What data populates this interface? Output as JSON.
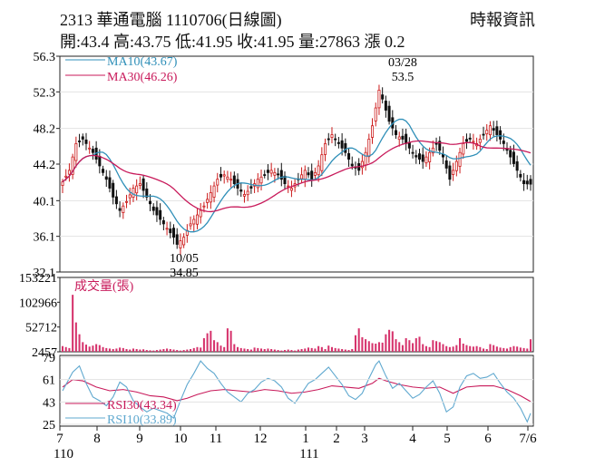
{
  "header": {
    "title": "2313  華通電腦 1110706(日線圖)",
    "source": "時報資訊",
    "ohlc": "開:43.4 高:43.75 低:41.95 收:41.95 量:27863 漲 0.2"
  },
  "chart_data": [
    {
      "type": "candlestick",
      "panel": "price",
      "y_ticks": [
        "56.3",
        "52.3",
        "48.2",
        "44.2",
        "40.1",
        "36.1",
        "32.1"
      ],
      "ylim": [
        32.1,
        56.3
      ],
      "legend": [
        "MA10(43.67)",
        "MA30(46.26)"
      ],
      "annotations": [
        {
          "label_top": "03/28",
          "label_bottom": "53.5",
          "x": "2022-03-28",
          "y": 53.5
        },
        {
          "label_top": "10/05",
          "label_bottom": "34.85",
          "x": "2021-10-05",
          "y": 34.85
        }
      ],
      "close_path": [
        [
          0,
          42.2
        ],
        [
          2,
          43.5
        ],
        [
          4,
          46.5
        ],
        [
          6,
          47.0
        ],
        [
          9,
          45.5
        ],
        [
          11,
          44.0
        ],
        [
          13,
          42.5
        ],
        [
          15,
          40.5
        ],
        [
          17,
          39.0
        ],
        [
          19,
          40.0
        ],
        [
          21,
          41.5
        ],
        [
          23,
          42.0
        ],
        [
          25,
          40.5
        ],
        [
          27,
          39.0
        ],
        [
          29,
          38.0
        ],
        [
          31,
          37.0
        ],
        [
          33,
          36.0
        ],
        [
          34,
          35.2
        ],
        [
          36,
          36.0
        ],
        [
          38,
          37.5
        ],
        [
          40,
          38.5
        ],
        [
          42,
          39.5
        ],
        [
          44,
          41.0
        ],
        [
          46,
          42.5
        ],
        [
          48,
          43.0
        ],
        [
          50,
          42.5
        ],
        [
          52,
          41.5
        ],
        [
          54,
          40.8
        ],
        [
          56,
          41.5
        ],
        [
          58,
          42.5
        ],
        [
          60,
          43.0
        ],
        [
          62,
          43.5
        ],
        [
          64,
          43.0
        ],
        [
          66,
          42.0
        ],
        [
          68,
          41.5
        ],
        [
          70,
          42.5
        ],
        [
          72,
          43.5
        ],
        [
          74,
          42.5
        ],
        [
          76,
          44.0
        ],
        [
          78,
          46.5
        ],
        [
          80,
          47.5
        ],
        [
          82,
          46.5
        ],
        [
          84,
          45.5
        ],
        [
          86,
          44.0
        ],
        [
          88,
          43.5
        ],
        [
          90,
          45.5
        ],
        [
          92,
          48.5
        ],
        [
          94,
          52.5
        ],
        [
          95,
          51.5
        ],
        [
          97,
          49.0
        ],
        [
          99,
          47.5
        ],
        [
          101,
          47.0
        ],
        [
          103,
          46.0
        ],
        [
          105,
          45.0
        ],
        [
          107,
          44.5
        ],
        [
          109,
          45.5
        ],
        [
          111,
          46.5
        ],
        [
          113,
          45.0
        ],
        [
          115,
          42.5
        ],
        [
          117,
          44.5
        ],
        [
          119,
          46.5
        ],
        [
          121,
          47.0
        ],
        [
          123,
          46.5
        ],
        [
          125,
          47.5
        ],
        [
          127,
          48.5
        ],
        [
          129,
          47.5
        ],
        [
          131,
          46.5
        ],
        [
          133,
          45.0
        ],
        [
          135,
          43.5
        ],
        [
          137,
          42.0
        ],
        [
          139,
          41.95
        ]
      ]
    },
    {
      "type": "bar",
      "panel": "volume",
      "ylabel": "成交量(張)",
      "y_ticks": [
        "153221",
        "102966",
        "52712",
        "2457"
      ],
      "ylim": [
        2457,
        153221
      ],
      "values": [
        14000,
        12000,
        10000,
        118000,
        62000,
        38000,
        22000,
        17000,
        13000,
        15000,
        18000,
        16000,
        12000,
        10000,
        9000,
        8000,
        9000,
        11000,
        10000,
        8000,
        7000,
        9000,
        8000,
        7000,
        7500,
        6000,
        5500,
        5000,
        6000,
        7000,
        8000,
        9000,
        8000,
        7000,
        6000,
        5000,
        6000,
        7000,
        8000,
        10000,
        12000,
        11000,
        30000,
        40000,
        45000,
        26000,
        22000,
        15000,
        12000,
        50000,
        45000,
        18000,
        12000,
        10000,
        9000,
        8000,
        7000,
        11000,
        10000,
        9000,
        8000,
        9000,
        8000,
        7000,
        6000,
        5000,
        6000,
        7000,
        6000,
        5000,
        7000,
        8000,
        9000,
        11000,
        10000,
        9000,
        14000,
        12000,
        8000,
        15000,
        12000,
        10000,
        9000,
        8000,
        7000,
        6000,
        8000,
        36000,
        50000,
        32000,
        28000,
        24000,
        20000,
        19000,
        22000,
        21000,
        38000,
        47000,
        44000,
        28000,
        22000,
        16000,
        30000,
        26000,
        20000,
        30000,
        33000,
        18000,
        14000,
        12000,
        26000,
        24000,
        22000,
        18000,
        14000,
        12000,
        13000,
        16000,
        30000,
        19000,
        16000,
        14000,
        13000,
        14000,
        12000,
        9000,
        8000,
        18000,
        16000,
        13000,
        11000,
        10000,
        9000,
        12000,
        14000,
        13000,
        11000,
        10000,
        9000,
        27863
      ]
    },
    {
      "type": "line",
      "panel": "rsi",
      "y_ticks": [
        "79",
        "61",
        "43",
        "25"
      ],
      "ylim": [
        25,
        79
      ],
      "legend": [
        "RSI30(43.34)",
        "RSI10(33.89)"
      ],
      "series": [
        {
          "name": "RSI30(43.34)",
          "values": [
            [
              0,
              55
            ],
            [
              3,
              61
            ],
            [
              6,
              60
            ],
            [
              10,
              55
            ],
            [
              14,
              52
            ],
            [
              18,
              53
            ],
            [
              22,
              51
            ],
            [
              26,
              48
            ],
            [
              30,
              47
            ],
            [
              34,
              44
            ],
            [
              37,
              46
            ],
            [
              40,
              49
            ],
            [
              44,
              52
            ],
            [
              48,
              53
            ],
            [
              52,
              52
            ],
            [
              56,
              51
            ],
            [
              60,
              53
            ],
            [
              64,
              52
            ],
            [
              68,
              50
            ],
            [
              72,
              51
            ],
            [
              76,
              53
            ],
            [
              80,
              56
            ],
            [
              84,
              55
            ],
            [
              88,
              54
            ],
            [
              92,
              58
            ],
            [
              94,
              62
            ],
            [
              96,
              60
            ],
            [
              100,
              57
            ],
            [
              104,
              55
            ],
            [
              108,
              54
            ],
            [
              112,
              55
            ],
            [
              116,
              50
            ],
            [
              120,
              55
            ],
            [
              124,
              56
            ],
            [
              128,
              56
            ],
            [
              132,
              53
            ],
            [
              136,
              48
            ],
            [
              139,
              43.34
            ]
          ]
        },
        {
          "name": "RSI10(33.89)",
          "values": [
            [
              0,
              52
            ],
            [
              3,
              67
            ],
            [
              5,
              72
            ],
            [
              7,
              58
            ],
            [
              9,
              47
            ],
            [
              11,
              44
            ],
            [
              13,
              40
            ],
            [
              15,
              47
            ],
            [
              17,
              59
            ],
            [
              19,
              55
            ],
            [
              21,
              44
            ],
            [
              23,
              39
            ],
            [
              25,
              35
            ],
            [
              27,
              38
            ],
            [
              29,
              36
            ],
            [
              31,
              34
            ],
            [
              33,
              30
            ],
            [
              35,
              44
            ],
            [
              37,
              57
            ],
            [
              39,
              66
            ],
            [
              41,
              76
            ],
            [
              43,
              70
            ],
            [
              45,
              66
            ],
            [
              47,
              58
            ],
            [
              49,
              51
            ],
            [
              51,
              47
            ],
            [
              53,
              43
            ],
            [
              55,
              50
            ],
            [
              57,
              53
            ],
            [
              59,
              59
            ],
            [
              61,
              62
            ],
            [
              63,
              60
            ],
            [
              65,
              55
            ],
            [
              67,
              46
            ],
            [
              69,
              42
            ],
            [
              71,
              50
            ],
            [
              73,
              58
            ],
            [
              75,
              61
            ],
            [
              77,
              66
            ],
            [
              79,
              71
            ],
            [
              81,
              64
            ],
            [
              83,
              57
            ],
            [
              85,
              48
            ],
            [
              87,
              45
            ],
            [
              89,
              50
            ],
            [
              91,
              62
            ],
            [
              93,
              73
            ],
            [
              94,
              76
            ],
            [
              96,
              64
            ],
            [
              98,
              54
            ],
            [
              100,
              58
            ],
            [
              102,
              52
            ],
            [
              104,
              46
            ],
            [
              106,
              49
            ],
            [
              108,
              55
            ],
            [
              110,
              60
            ],
            [
              112,
              50
            ],
            [
              114,
              35
            ],
            [
              116,
              39
            ],
            [
              118,
              55
            ],
            [
              120,
              64
            ],
            [
              122,
              66
            ],
            [
              124,
              62
            ],
            [
              126,
              63
            ],
            [
              128,
              66
            ],
            [
              130,
              58
            ],
            [
              132,
              51
            ],
            [
              134,
              46
            ],
            [
              136,
              38
            ],
            [
              138,
              27
            ],
            [
              139,
              33.89
            ]
          ]
        }
      ]
    }
  ],
  "x_axis": {
    "labels": [
      "7",
      "8",
      "9",
      "10",
      "11",
      "12",
      "1",
      "2",
      "3",
      "4",
      "5",
      "6",
      "7/6"
    ],
    "year_labels": [
      "110",
      "111"
    ]
  },
  "colors": {
    "up": "#cc1a1a",
    "down": "#111111",
    "ma10": "#2f8fb8",
    "ma30": "#c8195a",
    "volume": "#d6336c",
    "rsi30": "#c8195a",
    "rsi10": "#5fa8cf"
  }
}
